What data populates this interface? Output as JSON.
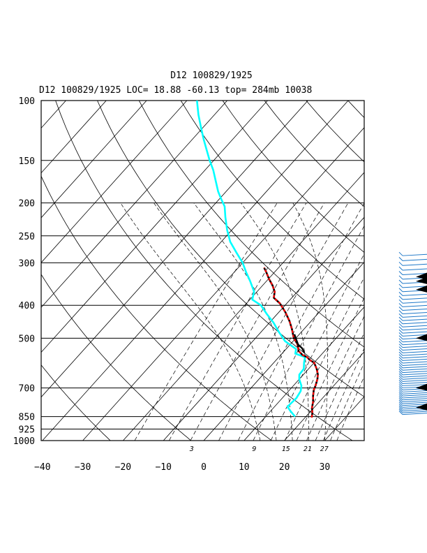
{
  "header": {
    "title": "D12 100829/1925",
    "subtitle": "D12     100829/1925 LOC= 18.88    -60.13  top= 284mb  10038"
  },
  "chart_data": {
    "type": "line",
    "chart_kind": "skew-t log-p sounding",
    "colors": {
      "temperature": "#ff0000",
      "dewpoint": "#00ffff",
      "frame": "#000000",
      "wind_barbs": "#1e78c8",
      "flags": "#000000"
    },
    "y_axis": {
      "scale": "log",
      "unit": "mb",
      "range": [
        1000,
        100
      ],
      "ticks": [
        100,
        150,
        200,
        250,
        300,
        400,
        500,
        700,
        850,
        925,
        1000
      ],
      "tick_labels": [
        "100",
        "150",
        "200",
        "250",
        "300",
        "400",
        "500",
        "700",
        "850",
        "925",
        "1000"
      ],
      "gridlines": true
    },
    "x_axis": {
      "unit": "°C",
      "range": [
        -40,
        40
      ],
      "ticks": [
        -40,
        -30,
        -20,
        -10,
        0,
        10,
        20,
        30
      ],
      "tick_labels": [
        "−40",
        "−30",
        "−20",
        "−10",
        "0",
        "10",
        "20",
        "30"
      ]
    },
    "mixing_ratio_labels": [
      "3",
      "9",
      "15",
      "21",
      "27"
    ],
    "mixing_ratio_values": [
      3,
      9,
      15,
      21,
      27
    ],
    "series": [
      {
        "key": "temperature",
        "points": [
          {
            "p": 855,
            "t": 21.6
          },
          {
            "p": 830,
            "t": 20.8
          },
          {
            "p": 800,
            "t": 19.5
          },
          {
            "p": 770,
            "t": 18.5
          },
          {
            "p": 740,
            "t": 17.2
          },
          {
            "p": 710,
            "t": 16.0
          },
          {
            "p": 690,
            "t": 15.5
          },
          {
            "p": 660,
            "t": 14.5
          },
          {
            "p": 640,
            "t": 13.6
          },
          {
            "p": 615,
            "t": 12.0
          },
          {
            "p": 590,
            "t": 10.0
          },
          {
            "p": 580,
            "t": 8.4
          },
          {
            "p": 568,
            "t": 7.0
          },
          {
            "p": 560,
            "t": 5.4
          },
          {
            "p": 545,
            "t": 3.5
          },
          {
            "p": 530,
            "t": 2.5
          },
          {
            "p": 517,
            "t": 1.4
          },
          {
            "p": 500,
            "t": -0.5
          },
          {
            "p": 470,
            "t": -3.0
          },
          {
            "p": 445,
            "t": -5.4
          },
          {
            "p": 420,
            "t": -8.3
          },
          {
            "p": 395,
            "t": -11.7
          },
          {
            "p": 380,
            "t": -14.5
          },
          {
            "p": 365,
            "t": -15.6
          },
          {
            "p": 350,
            "t": -17.5
          },
          {
            "p": 335,
            "t": -19.8
          },
          {
            "p": 320,
            "t": -22.0
          },
          {
            "p": 310,
            "t": -23.6
          }
        ]
      },
      {
        "key": "dewpoint",
        "points": [
          {
            "p": 850,
            "t": 17.3
          },
          {
            "p": 820,
            "t": 15.0
          },
          {
            "p": 795,
            "t": 13.2
          },
          {
            "p": 750,
            "t": 13.5
          },
          {
            "p": 715,
            "t": 13.0
          },
          {
            "p": 690,
            "t": 12.0
          },
          {
            "p": 660,
            "t": 10.0
          },
          {
            "p": 640,
            "t": 9.0
          },
          {
            "p": 615,
            "t": 8.8
          },
          {
            "p": 590,
            "t": 7.5
          },
          {
            "p": 568,
            "t": 6.5
          },
          {
            "p": 555,
            "t": 3.3
          },
          {
            "p": 538,
            "t": 2.5
          },
          {
            "p": 510,
            "t": -2.0
          },
          {
            "p": 480,
            "t": -5.5
          },
          {
            "p": 450,
            "t": -9.0
          },
          {
            "p": 425,
            "t": -12.5
          },
          {
            "p": 400,
            "t": -16.0
          },
          {
            "p": 385,
            "t": -19.4
          },
          {
            "p": 365,
            "t": -20.7
          },
          {
            "p": 340,
            "t": -24.0
          },
          {
            "p": 320,
            "t": -27.0
          },
          {
            "p": 300,
            "t": -30.0
          },
          {
            "p": 280,
            "t": -33.8
          },
          {
            "p": 260,
            "t": -37.8
          },
          {
            "p": 240,
            "t": -41.2
          },
          {
            "p": 220,
            "t": -44.5
          },
          {
            "p": 205,
            "t": -47.0
          },
          {
            "p": 195,
            "t": -49.5
          },
          {
            "p": 185,
            "t": -52.0
          },
          {
            "p": 170,
            "t": -55.5
          },
          {
            "p": 160,
            "t": -58.0
          },
          {
            "p": 150,
            "t": -61.0
          },
          {
            "p": 140,
            "t": -64.0
          },
          {
            "p": 130,
            "t": -67.2
          },
          {
            "p": 120,
            "t": -70.5
          },
          {
            "p": 110,
            "t": -74.0
          },
          {
            "p": 100,
            "t": -77.5
          }
        ]
      }
    ],
    "environmental_segment": {
      "points": [
        {
          "p": 552,
          "t": 5.4
        },
        {
          "p": 535,
          "t": 3.8
        },
        {
          "p": 522,
          "t": 2.0
        },
        {
          "p": 500,
          "t": 0.0
        },
        {
          "p": 487,
          "t": -1.2
        }
      ]
    },
    "wind_profile": {
      "pressures": [
        850,
        840,
        830,
        820,
        810,
        800,
        790,
        780,
        770,
        760,
        750,
        740,
        730,
        720,
        710,
        700,
        690,
        680,
        670,
        660,
        650,
        640,
        630,
        620,
        610,
        600,
        590,
        580,
        570,
        560,
        550,
        540,
        530,
        520,
        510,
        500,
        490,
        480,
        470,
        460,
        450,
        440,
        430,
        420,
        410,
        400,
        390,
        380,
        370,
        360,
        350,
        340,
        330,
        320,
        310,
        300,
        290
      ],
      "flag_pressures": [
        800,
        700,
        500,
        360,
        340,
        330
      ]
    }
  }
}
